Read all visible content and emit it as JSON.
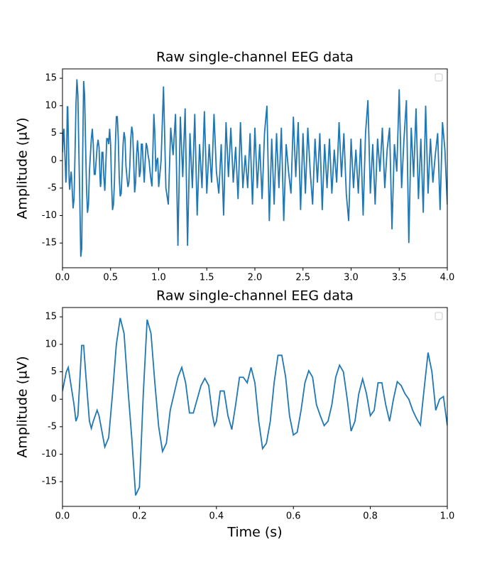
{
  "chart_data": [
    {
      "type": "line",
      "title": "Raw single-channel EEG data",
      "ylabel": "Amplitude (µV)",
      "color": "#1f77b4",
      "x": [
        0,
        0.01,
        0.015,
        0.03,
        0.035,
        0.04,
        0.05,
        0.055,
        0.06,
        0.07,
        0.075,
        0.08,
        0.09,
        0.095,
        0.11,
        0.12,
        0.13,
        0.14,
        0.15,
        0.16,
        0.17,
        0.18,
        0.19,
        0.2,
        0.21,
        0.22,
        0.23,
        0.24,
        0.25,
        0.26,
        0.27,
        0.28,
        0.29,
        0.3,
        0.31,
        0.32,
        0.33,
        0.34,
        0.35,
        0.36,
        0.37,
        0.38,
        0.39,
        0.395,
        0.4,
        0.41,
        0.42,
        0.43,
        0.44,
        0.45,
        0.46,
        0.47,
        0.48,
        0.49,
        0.5,
        0.51,
        0.52,
        0.53,
        0.54,
        0.55,
        0.56,
        0.57,
        0.58,
        0.59,
        0.6,
        0.61,
        0.62,
        0.63,
        0.64,
        0.65,
        0.66,
        0.67,
        0.68,
        0.69,
        0.7,
        0.71,
        0.72,
        0.73,
        0.74,
        0.75,
        0.76,
        0.77,
        0.78,
        0.79,
        0.8,
        0.81,
        0.82,
        0.83,
        0.84,
        0.85,
        0.86,
        0.87,
        0.88,
        0.89,
        0.9,
        0.91,
        0.92,
        0.93,
        0.94,
        0.95,
        0.96,
        0.97,
        0.98,
        0.99,
        1.0,
        1.025,
        1.05,
        1.075,
        1.1,
        1.125,
        1.15,
        1.175,
        1.2,
        1.225,
        1.25,
        1.275,
        1.3,
        1.325,
        1.35,
        1.375,
        1.4,
        1.425,
        1.45,
        1.475,
        1.5,
        1.525,
        1.55,
        1.575,
        1.6,
        1.625,
        1.65,
        1.675,
        1.7,
        1.725,
        1.75,
        1.775,
        1.8,
        1.825,
        1.85,
        1.875,
        1.9,
        1.925,
        1.95,
        1.975,
        2.0,
        2.025,
        2.05,
        2.075,
        2.1,
        2.125,
        2.15,
        2.175,
        2.2,
        2.225,
        2.25,
        2.275,
        2.3,
        2.325,
        2.35,
        2.375,
        2.4,
        2.425,
        2.45,
        2.475,
        2.5,
        2.525,
        2.55,
        2.575,
        2.6,
        2.625,
        2.65,
        2.675,
        2.7,
        2.725,
        2.75,
        2.775,
        2.8,
        2.825,
        2.85,
        2.875,
        2.9,
        2.925,
        2.95,
        2.975,
        3.0,
        3.025,
        3.05,
        3.075,
        3.1,
        3.125,
        3.15,
        3.175,
        3.2,
        3.225,
        3.25,
        3.275,
        3.3,
        3.325,
        3.35,
        3.375,
        3.4,
        3.425,
        3.45,
        3.475,
        3.5,
        3.525,
        3.55,
        3.575,
        3.6,
        3.625,
        3.65,
        3.675,
        3.7,
        3.725,
        3.75,
        3.775,
        3.8,
        3.825,
        3.85,
        3.875,
        3.9,
        3.925,
        3.95,
        3.975,
        4.0
      ],
      "values": [
        1.5,
        5,
        5.8,
        -1,
        -4,
        -3,
        9.8,
        9.8,
        5,
        -4,
        -5.3,
        -4,
        -2,
        -3,
        -8.7,
        -7,
        1,
        10,
        14.8,
        12,
        2,
        -7,
        -17.5,
        -16,
        1,
        14.5,
        12,
        3,
        -5,
        -9.5,
        -8,
        -2,
        1,
        4,
        5.8,
        3,
        -2.5,
        -2.5,
        0,
        2.5,
        3.8,
        2.5,
        -3,
        -4.8,
        -4,
        1.5,
        1.5,
        -3,
        -5.5,
        -1,
        4,
        4,
        3,
        5.8,
        3,
        -4,
        -9,
        -8,
        -4,
        3,
        8,
        8,
        4,
        -3,
        -6.5,
        -6,
        -2,
        3,
        5.2,
        4,
        -1,
        -3,
        -4.8,
        -4,
        -1,
        4,
        6.2,
        5,
        0,
        -5.8,
        -4,
        1,
        3.7,
        1,
        -3,
        -2,
        3,
        3,
        -1,
        -4,
        0,
        3.2,
        2.5,
        1,
        0,
        -2,
        -3.5,
        -4.7,
        2,
        8.5,
        5,
        -2,
        0,
        0.5,
        -4.8,
        0,
        13.5,
        -5,
        -8,
        6,
        1,
        8.5,
        -15.5,
        8,
        -3,
        9.5,
        -15.5,
        5,
        -5,
        8.5,
        -10,
        3,
        -5,
        9,
        -6,
        3,
        -4,
        8.5,
        -2,
        -6,
        3,
        -10,
        7,
        -3,
        6,
        -4,
        2.5,
        -7,
        7,
        -5,
        1,
        -5,
        5,
        -8,
        6,
        -5,
        3,
        -7,
        5,
        10,
        -11,
        4,
        -8,
        5,
        -5,
        6,
        -11,
        3,
        -2,
        -6,
        8,
        -3,
        7,
        -9,
        5,
        -6,
        6,
        -2,
        -8,
        4,
        -4,
        5,
        -9,
        3,
        -5,
        4,
        -6,
        2,
        -4,
        7,
        -3,
        5,
        -6,
        -11,
        4,
        -5,
        2,
        -6,
        4,
        -10,
        5,
        11,
        -6,
        3,
        -8,
        4,
        -2,
        6,
        -5,
        2,
        6,
        -12.5,
        3,
        -2,
        13,
        -5,
        4,
        11,
        -15,
        6,
        -3,
        9.5,
        -7,
        4,
        -9.5,
        10,
        -6,
        4,
        -4,
        1,
        5,
        -9,
        7,
        2,
        -8
      ],
      "xlim": [
        0,
        4
      ],
      "xticks": [
        {
          "value": 0,
          "label": "0.0"
        },
        0.5,
        {
          "value": 1,
          "label": "1.0"
        },
        1.5,
        {
          "value": 2,
          "label": "2.0"
        },
        2.5,
        {
          "value": 3,
          "label": "3.0"
        },
        3.5,
        {
          "value": 4,
          "label": "4.0"
        }
      ],
      "ylim": [
        -19.5,
        16.7
      ],
      "yticks": [
        -15,
        -10,
        -5,
        0,
        5,
        10,
        15
      ]
    },
    {
      "type": "line",
      "title": "Raw single-channel EEG data",
      "ylabel": "Amplitude (µV)",
      "xlabel": "Time (s)",
      "color": "#1f77b4",
      "x": [
        0,
        0.01,
        0.015,
        0.03,
        0.035,
        0.04,
        0.05,
        0.055,
        0.06,
        0.07,
        0.075,
        0.08,
        0.09,
        0.095,
        0.11,
        0.12,
        0.13,
        0.14,
        0.15,
        0.16,
        0.17,
        0.18,
        0.19,
        0.2,
        0.21,
        0.22,
        0.23,
        0.24,
        0.25,
        0.26,
        0.27,
        0.28,
        0.29,
        0.3,
        0.31,
        0.32,
        0.33,
        0.34,
        0.35,
        0.36,
        0.37,
        0.38,
        0.39,
        0.395,
        0.4,
        0.41,
        0.42,
        0.43,
        0.44,
        0.45,
        0.46,
        0.47,
        0.48,
        0.49,
        0.5,
        0.51,
        0.52,
        0.53,
        0.54,
        0.55,
        0.56,
        0.57,
        0.58,
        0.59,
        0.6,
        0.61,
        0.62,
        0.63,
        0.64,
        0.65,
        0.66,
        0.67,
        0.68,
        0.69,
        0.7,
        0.71,
        0.72,
        0.73,
        0.74,
        0.75,
        0.76,
        0.77,
        0.78,
        0.79,
        0.8,
        0.81,
        0.82,
        0.83,
        0.84,
        0.85,
        0.86,
        0.87,
        0.88,
        0.89,
        0.9,
        0.91,
        0.92,
        0.93,
        0.94,
        0.95,
        0.96,
        0.97,
        0.98,
        0.99,
        1.0
      ],
      "values": [
        1.5,
        5,
        5.8,
        -1,
        -4,
        -3,
        9.8,
        9.8,
        5,
        -4,
        -5.3,
        -4,
        -2,
        -3,
        -8.7,
        -7,
        1,
        10,
        14.8,
        12,
        2,
        -7,
        -17.5,
        -16,
        1,
        14.5,
        12,
        3,
        -5,
        -9.5,
        -8,
        -2,
        1,
        4,
        5.8,
        3,
        -2.5,
        -2.5,
        0,
        2.5,
        3.8,
        2.5,
        -3,
        -4.8,
        -4,
        1.5,
        1.5,
        -3,
        -5.5,
        -1,
        4,
        4,
        3,
        5.8,
        3,
        -4,
        -9,
        -8,
        -4,
        3,
        8,
        8,
        4,
        -3,
        -6.5,
        -6,
        -2,
        3,
        5.2,
        4,
        -1,
        -3,
        -4.8,
        -4,
        -1,
        4,
        6.2,
        5,
        0,
        -5.8,
        -4,
        1,
        3.7,
        1,
        -3,
        -2,
        3,
        3,
        -1,
        -4,
        0,
        3.2,
        2.5,
        1,
        0,
        -2,
        -3.5,
        -4.7,
        2,
        8.5,
        5,
        -2,
        0,
        0.5,
        -4.8
      ],
      "xlim": [
        0,
        1
      ],
      "xticks": [
        {
          "value": 0,
          "label": "0.0"
        },
        0.2,
        0.4,
        0.6,
        0.8,
        {
          "value": 1,
          "label": "1.0"
        }
      ],
      "ylim": [
        -19.5,
        16.7
      ],
      "yticks": [
        -15,
        -10,
        -5,
        0,
        5,
        10,
        15
      ]
    }
  ]
}
